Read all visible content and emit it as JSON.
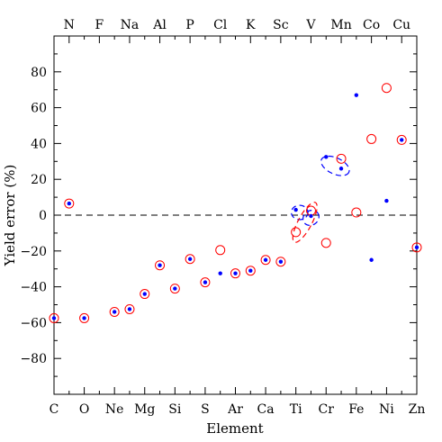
{
  "chart_data": {
    "type": "scatter",
    "xlabel": "Element",
    "ylabel": "Yield error (%)",
    "ylim": [
      -100,
      100
    ],
    "y_ticks": [
      -80,
      -60,
      -40,
      -20,
      0,
      20,
      40,
      60,
      80
    ],
    "bottom_elements": [
      "C",
      "O",
      "Ne",
      "Mg",
      "Si",
      "S",
      "Ar",
      "Ca",
      "Ti",
      "Cr",
      "Fe",
      "Ni",
      "Zn"
    ],
    "top_elements": [
      "N",
      "F",
      "Na",
      "Al",
      "P",
      "Cl",
      "K",
      "Sc",
      "V",
      "Mn",
      "Co",
      "Cu"
    ],
    "bottom_element_z": [
      6,
      8,
      10,
      12,
      14,
      16,
      18,
      20,
      22,
      24,
      26,
      28,
      30
    ],
    "top_element_z": [
      7,
      9,
      11,
      13,
      15,
      17,
      19,
      21,
      23,
      25,
      27,
      29
    ],
    "xlim": [
      6,
      30
    ],
    "reference_line_y": 0,
    "series": [
      {
        "marker": "filled-dot",
        "color": "#0000ff",
        "points": [
          {
            "z": 6,
            "y": -57.5
          },
          {
            "z": 7,
            "y": 6.5
          },
          {
            "z": 8,
            "y": -57.5
          },
          {
            "z": 10,
            "y": -54
          },
          {
            "z": 11,
            "y": -52.5
          },
          {
            "z": 12,
            "y": -44
          },
          {
            "z": 13,
            "y": -28
          },
          {
            "z": 14,
            "y": -41
          },
          {
            "z": 15,
            "y": -24.5
          },
          {
            "z": 16,
            "y": -37.5
          },
          {
            "z": 17,
            "y": -32.5
          },
          {
            "z": 18,
            "y": -32.5
          },
          {
            "z": 19,
            "y": -31
          },
          {
            "z": 20,
            "y": -25
          },
          {
            "z": 21,
            "y": -26
          },
          {
            "z": 22,
            "y": 3
          },
          {
            "z": 23,
            "y": -0.5
          },
          {
            "z": 24,
            "y": 32.5
          },
          {
            "z": 25,
            "y": 26
          },
          {
            "z": 26,
            "y": 67
          },
          {
            "z": 27,
            "y": -25
          },
          {
            "z": 28,
            "y": 8
          },
          {
            "z": 29,
            "y": 42
          },
          {
            "z": 30,
            "y": -18
          }
        ]
      },
      {
        "marker": "open-circle",
        "color": "#ff0000",
        "points": [
          {
            "z": 6,
            "y": -57.5
          },
          {
            "z": 7,
            "y": 6.5
          },
          {
            "z": 8,
            "y": -57.5
          },
          {
            "z": 10,
            "y": -54
          },
          {
            "z": 11,
            "y": -52.5
          },
          {
            "z": 12,
            "y": -44
          },
          {
            "z": 13,
            "y": -28
          },
          {
            "z": 14,
            "y": -41
          },
          {
            "z": 15,
            "y": -24.5
          },
          {
            "z": 16,
            "y": -37.5
          },
          {
            "z": 17,
            "y": -19.5
          },
          {
            "z": 18,
            "y": -32.5
          },
          {
            "z": 19,
            "y": -31
          },
          {
            "z": 20,
            "y": -25
          },
          {
            "z": 21,
            "y": -26
          },
          {
            "z": 22,
            "y": -9.5
          },
          {
            "z": 23,
            "y": 2.5
          },
          {
            "z": 24,
            "y": -15.5
          },
          {
            "z": 25,
            "y": 31.5
          },
          {
            "z": 26,
            "y": 1.5
          },
          {
            "z": 27,
            "y": 42.5
          },
          {
            "z": 28,
            "y": 71
          },
          {
            "z": 29,
            "y": 42
          },
          {
            "z": 30,
            "y": -18
          }
        ]
      }
    ],
    "ellipses": [
      {
        "color": "#0000ff",
        "cz": 22.25,
        "cy": 1.5,
        "rz": 0.55,
        "ry": 4,
        "angle": 0
      },
      {
        "color": "#0000ff",
        "cz": 23.0,
        "cy": -1.5,
        "rz": 0.55,
        "ry": 4,
        "angle": -35
      },
      {
        "color": "#0000ff",
        "cz": 24.6,
        "cy": 27.5,
        "rz": 1.0,
        "ry": 4.5,
        "angle": 25
      },
      {
        "color": "#ff0000",
        "cz": 22.6,
        "cy": -4.0,
        "rz": 0.45,
        "ry": 12.5,
        "angle": 28
      }
    ]
  }
}
